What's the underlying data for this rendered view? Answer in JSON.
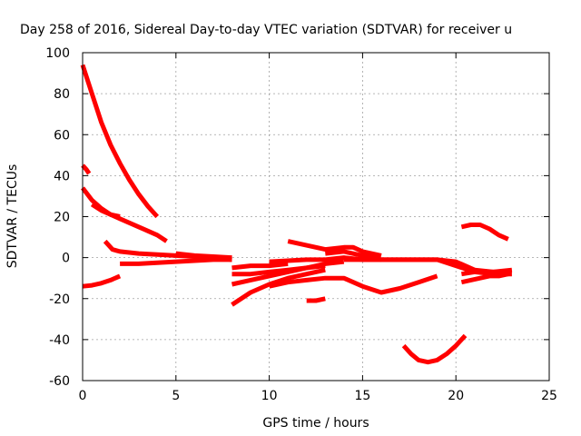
{
  "chart_data": {
    "type": "line",
    "title": "Day 258 of 2016, Sidereal Day-to-day VTEC variation (SDTVAR) for receiver u",
    "xlabel": "GPS time / hours",
    "ylabel": "SDTVAR / TECUs",
    "xlim": [
      0,
      25
    ],
    "ylim": [
      -60,
      100
    ],
    "xticks": [
      0,
      5,
      10,
      15,
      20,
      25
    ],
    "yticks": [
      -60,
      -40,
      -20,
      0,
      20,
      40,
      60,
      80,
      100
    ],
    "grid": true,
    "legend": "none",
    "series_color": "#ff0000",
    "series": [
      {
        "x": [
          0.0,
          0.5,
          1.0,
          1.5,
          2.0,
          2.5,
          3.0,
          3.5,
          4.0
        ],
        "y": [
          94,
          80,
          66,
          55,
          46,
          38,
          31,
          25,
          20
        ]
      },
      {
        "x": [
          0.0,
          0.2,
          0.35
        ],
        "y": [
          45,
          43,
          41
        ]
      },
      {
        "x": [
          0.0,
          0.5,
          1.0,
          1.5,
          2.0,
          2.5,
          3.0,
          3.5,
          4.0,
          4.5
        ],
        "y": [
          34,
          28,
          24,
          21,
          19,
          17,
          15,
          13,
          11,
          8
        ]
      },
      {
        "x": [
          0.5,
          1.0,
          1.5,
          2.0
        ],
        "y": [
          26,
          23,
          21,
          20
        ]
      },
      {
        "x": [
          0.0,
          0.5,
          1.0,
          1.5,
          2.0
        ],
        "y": [
          -14,
          -13.5,
          -12.5,
          -11,
          -9
        ]
      },
      {
        "x": [
          1.2,
          1.6,
          2.0,
          3.0,
          4.0,
          5.0,
          6.0,
          7.0,
          8.0
        ],
        "y": [
          8,
          4,
          3,
          2,
          1.5,
          1,
          0.5,
          0,
          -1
        ]
      },
      {
        "x": [
          2.0,
          3.0,
          4.0,
          5.0,
          6.0,
          7.0,
          8.0
        ],
        "y": [
          -3,
          -3,
          -2.5,
          -2,
          -1.5,
          -1,
          -1
        ]
      },
      {
        "x": [
          5.0,
          6.0,
          7.0,
          8.0
        ],
        "y": [
          2,
          1,
          0.5,
          0
        ]
      },
      {
        "x": [
          8.0,
          9.0,
          10.0,
          11.0,
          12.0,
          13.0
        ],
        "y": [
          -23,
          -17,
          -13,
          -10,
          -8,
          -6
        ]
      },
      {
        "x": [
          8.0,
          9.0,
          10.0,
          11.0,
          12.0,
          13.0,
          14.0
        ],
        "y": [
          -13,
          -11,
          -9,
          -7,
          -5,
          -3,
          -2
        ]
      },
      {
        "x": [
          8.0,
          9.0,
          10.0,
          11.0
        ],
        "y": [
          -5,
          -4,
          -4,
          -3
        ]
      },
      {
        "x": [
          8.0,
          9.0,
          10.0,
          11.0,
          12.0,
          13.0
        ],
        "y": [
          -8,
          -8,
          -7,
          -6,
          -5,
          -4
        ]
      },
      {
        "x": [
          10.0,
          11.0,
          12.0,
          13.0,
          14.0,
          15.0,
          16.0
        ],
        "y": [
          -2,
          -1.5,
          -1,
          -1,
          0,
          -1,
          -1
        ]
      },
      {
        "x": [
          10.0,
          11.0,
          12.0,
          13.0,
          14.0,
          15.0,
          16.0,
          17.0,
          18.0,
          19.0
        ],
        "y": [
          -14,
          -12,
          -11,
          -10,
          -10,
          -14,
          -17,
          -15,
          -12,
          -9
        ]
      },
      {
        "x": [
          11.0,
          12.0,
          13.0,
          14.0,
          14.5,
          15.0,
          16.0
        ],
        "y": [
          8,
          6,
          4,
          5,
          5,
          3,
          1
        ]
      },
      {
        "x": [
          12.0,
          12.5,
          13.0
        ],
        "y": [
          -21,
          -21,
          -20
        ]
      },
      {
        "x": [
          13.0,
          14.0,
          15.0,
          16.0,
          17.0,
          18.0,
          19.0,
          20.0,
          21.0,
          22.0,
          23.0
        ],
        "y": [
          2,
          3,
          1,
          -1,
          -1,
          -1,
          -1,
          -4,
          -7,
          -8,
          -8
        ]
      },
      {
        "x": [
          14.0,
          15.0,
          16.0,
          17.0,
          18.0,
          19.0,
          20.0,
          21.0,
          22.0,
          23.0
        ],
        "y": [
          -1,
          -1,
          -1,
          -1,
          -1,
          -1,
          -2,
          -6,
          -7,
          -6
        ]
      },
      {
        "x": [
          17.2,
          17.6,
          18.0,
          18.5,
          19.0,
          19.5,
          20.0,
          20.5
        ],
        "y": [
          -43,
          -47,
          -50,
          -51,
          -50,
          -47,
          -43,
          -38
        ]
      },
      {
        "x": [
          20.3,
          20.8,
          21.3,
          21.8,
          22.3,
          22.8
        ],
        "y": [
          15,
          16,
          16,
          14,
          11,
          9
        ]
      },
      {
        "x": [
          20.3,
          20.8,
          21.3,
          21.8,
          22.3,
          22.8
        ],
        "y": [
          -12,
          -11,
          -10,
          -9,
          -9,
          -8
        ]
      },
      {
        "x": [
          20.3,
          21.0,
          22.0,
          22.8
        ],
        "y": [
          -8,
          -7,
          -7,
          -7
        ]
      }
    ]
  }
}
